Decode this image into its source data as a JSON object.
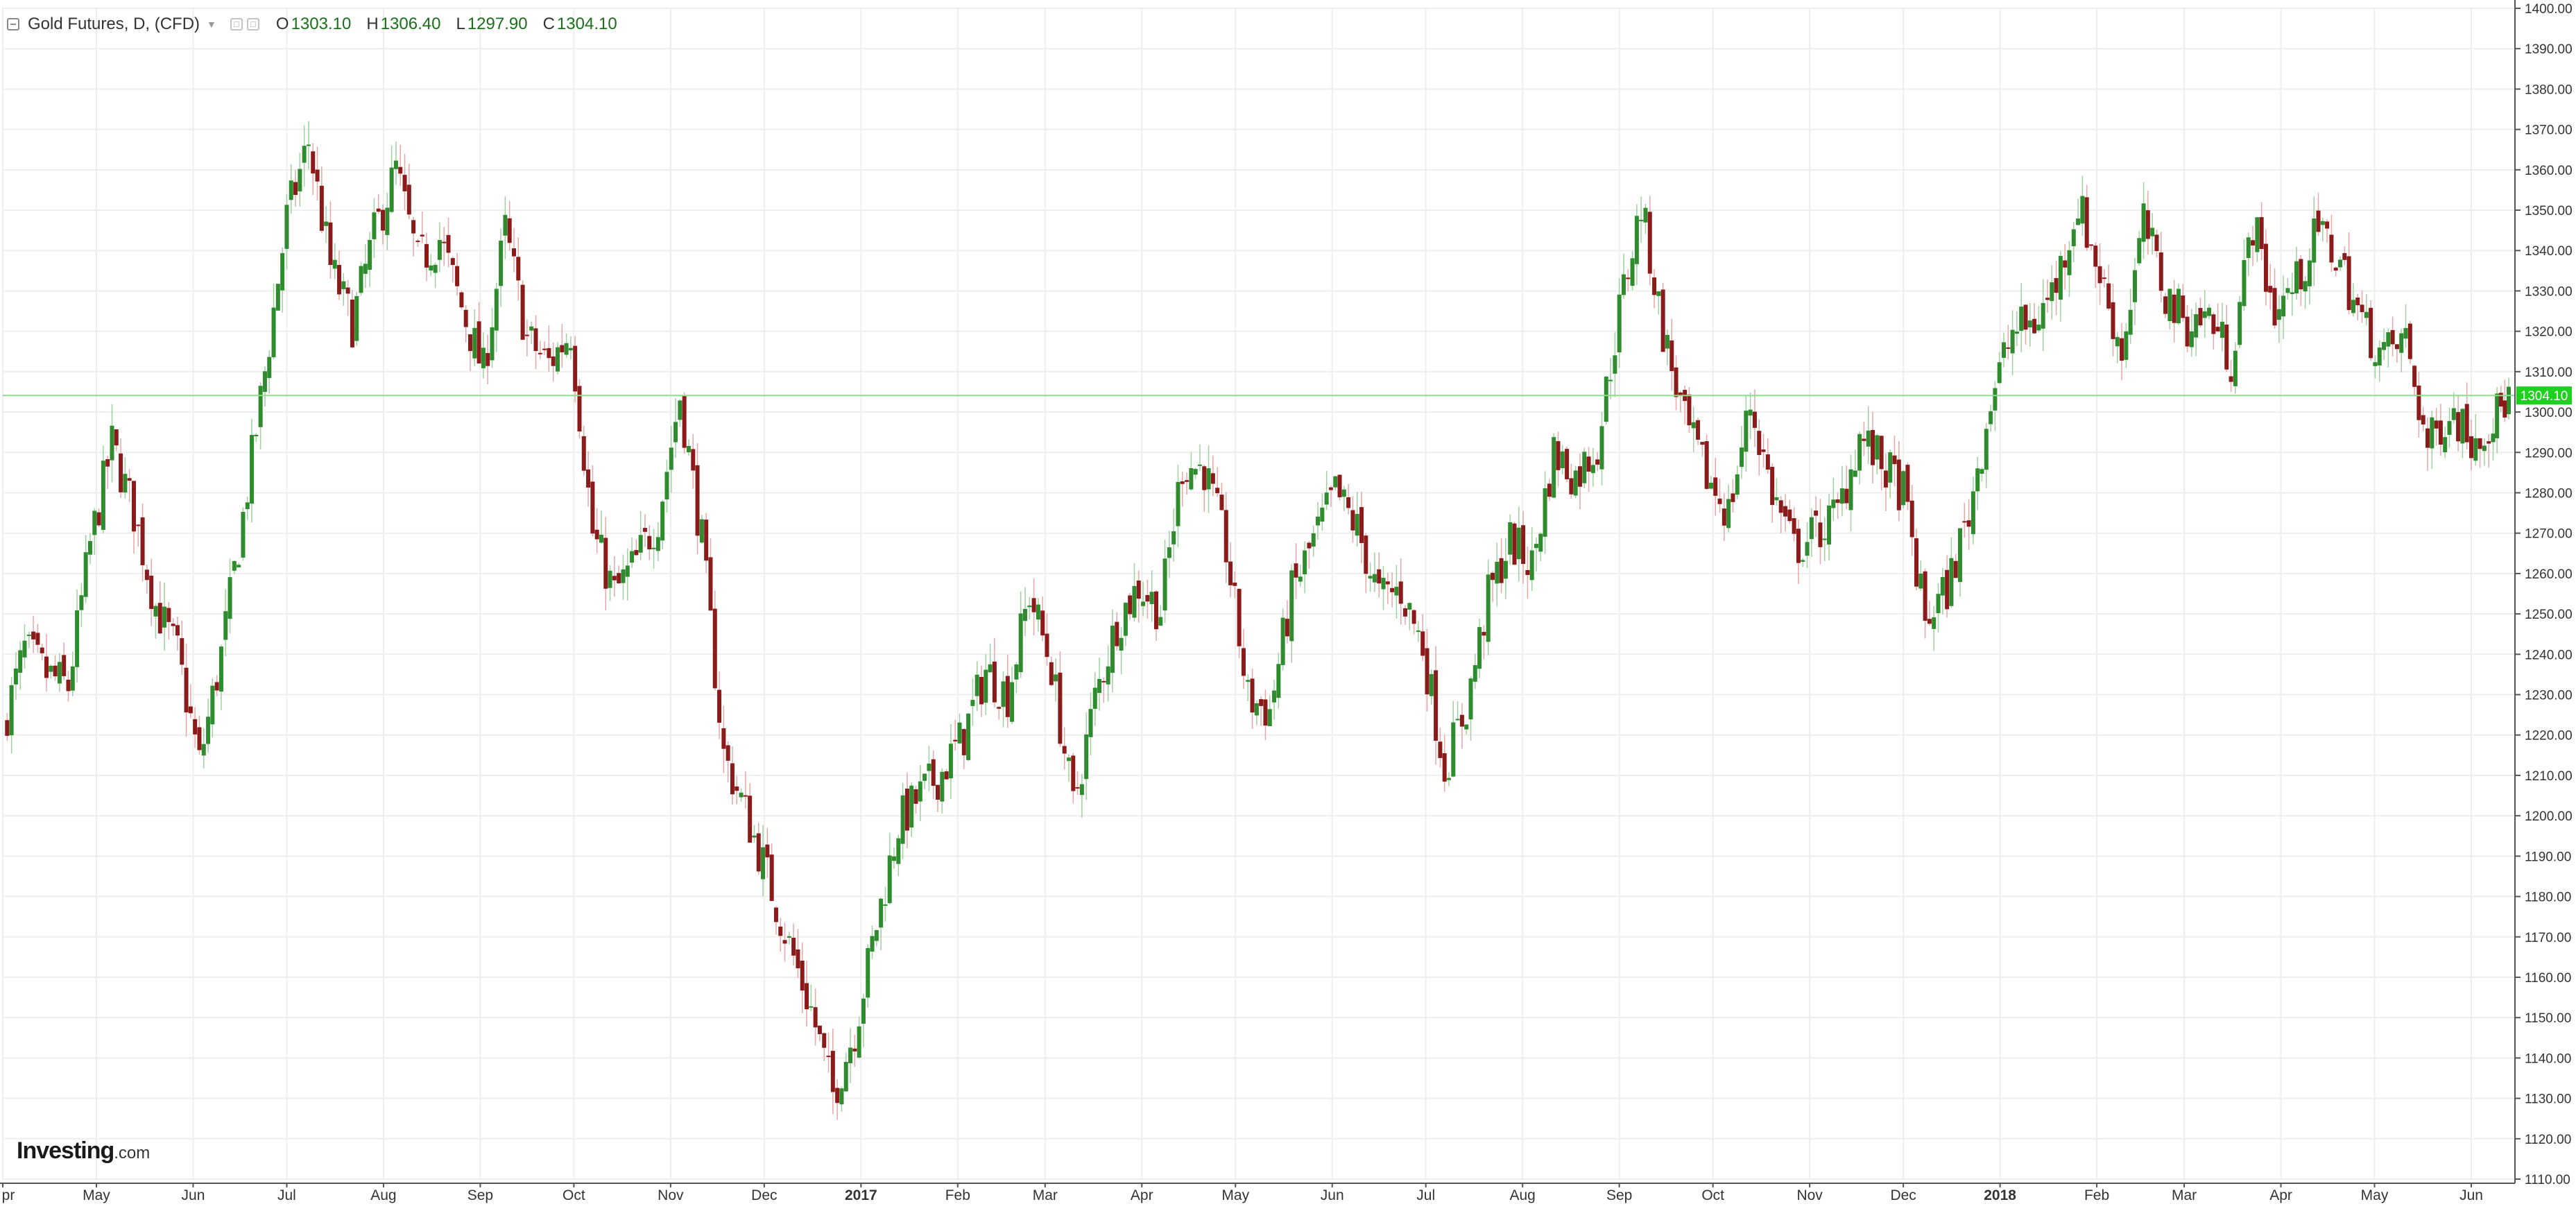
{
  "legend": {
    "title": "Gold Futures, D, (CFD)",
    "open_label": "O",
    "open": "1303.10",
    "high_label": "H",
    "high": "1306.40",
    "low_label": "L",
    "low": "1297.90",
    "close_label": "C",
    "close": "1304.10"
  },
  "logo": {
    "main": "Investing",
    "suffix": ".com"
  },
  "colors": {
    "up": "#2e8b2e",
    "down": "#8b1a1a",
    "wick_up": "#9fd09f",
    "wick_down": "#e8a6a6",
    "grid": "#eeeeee",
    "axis": "#555555",
    "price_line": "#88e088",
    "price_badge": "#1fd11f"
  },
  "chart_data": {
    "type": "candlestick",
    "title": "Gold Futures, D, (CFD)",
    "xlabel": "",
    "ylabel": "",
    "ylim": [
      1110,
      1400
    ],
    "yticks": [
      1110,
      1120,
      1130,
      1140,
      1150,
      1160,
      1170,
      1180,
      1190,
      1200,
      1210,
      1220,
      1230,
      1240,
      1250,
      1260,
      1270,
      1280,
      1290,
      1300,
      1310,
      1320,
      1330,
      1340,
      1350,
      1360,
      1370,
      1380,
      1390,
      1400
    ],
    "ytick_labels": [
      "1110.00",
      "1120.00",
      "1130.00",
      "1140.00",
      "1150.00",
      "1160.00",
      "1170.00",
      "1180.00",
      "1190.00",
      "1200.00",
      "1210.00",
      "1220.00",
      "1230.00",
      "1240.00",
      "1250.00",
      "1260.00",
      "1270.00",
      "1280.00",
      "1290.00",
      "1300.00",
      "1310.00",
      "1320.00",
      "1330.00",
      "1340.00",
      "1350.00",
      "1360.00",
      "1370.00",
      "1380.00",
      "1390.00",
      "1400.00"
    ],
    "x_range": [
      "2016-04-01",
      "2018-06-15"
    ],
    "xticks": [
      {
        "date": "2016-04-01",
        "label": "pr",
        "bold": false
      },
      {
        "date": "2016-05-01",
        "label": "May",
        "bold": false
      },
      {
        "date": "2016-06-01",
        "label": "Jun",
        "bold": false
      },
      {
        "date": "2016-07-01",
        "label": "Jul",
        "bold": false
      },
      {
        "date": "2016-08-01",
        "label": "Aug",
        "bold": false
      },
      {
        "date": "2016-09-01",
        "label": "Sep",
        "bold": false
      },
      {
        "date": "2016-10-01",
        "label": "Oct",
        "bold": false
      },
      {
        "date": "2016-11-01",
        "label": "Nov",
        "bold": false
      },
      {
        "date": "2016-12-01",
        "label": "Dec",
        "bold": false
      },
      {
        "date": "2017-01-01",
        "label": "2017",
        "bold": true
      },
      {
        "date": "2017-02-01",
        "label": "Feb",
        "bold": false
      },
      {
        "date": "2017-03-01",
        "label": "Mar",
        "bold": false
      },
      {
        "date": "2017-04-01",
        "label": "Apr",
        "bold": false
      },
      {
        "date": "2017-05-01",
        "label": "May",
        "bold": false
      },
      {
        "date": "2017-06-01",
        "label": "Jun",
        "bold": false
      },
      {
        "date": "2017-07-01",
        "label": "Jul",
        "bold": false
      },
      {
        "date": "2017-08-01",
        "label": "Aug",
        "bold": false
      },
      {
        "date": "2017-09-01",
        "label": "Sep",
        "bold": false
      },
      {
        "date": "2017-10-01",
        "label": "Oct",
        "bold": false
      },
      {
        "date": "2017-11-01",
        "label": "Nov",
        "bold": false
      },
      {
        "date": "2017-12-01",
        "label": "Dec",
        "bold": false
      },
      {
        "date": "2018-01-01",
        "label": "2018",
        "bold": true
      },
      {
        "date": "2018-02-01",
        "label": "Feb",
        "bold": false
      },
      {
        "date": "2018-03-01",
        "label": "Mar",
        "bold": false
      },
      {
        "date": "2018-04-01",
        "label": "Apr",
        "bold": false
      },
      {
        "date": "2018-05-01",
        "label": "May",
        "bold": false
      },
      {
        "date": "2018-06-01",
        "label": "Jun",
        "bold": false
      }
    ],
    "grid": true,
    "last_price": 1304.1,
    "last_price_label": "1304.10",
    "weekly_closes": [
      {
        "date": "2016-04-01",
        "close": 1222
      },
      {
        "date": "2016-04-08",
        "close": 1241
      },
      {
        "date": "2016-04-15",
        "close": 1235
      },
      {
        "date": "2016-04-22",
        "close": 1232
      },
      {
        "date": "2016-04-29",
        "close": 1267
      },
      {
        "date": "2016-05-06",
        "close": 1292
      },
      {
        "date": "2016-05-13",
        "close": 1275
      },
      {
        "date": "2016-05-20",
        "close": 1252
      },
      {
        "date": "2016-05-27",
        "close": 1240
      },
      {
        "date": "2016-06-03",
        "close": 1213
      },
      {
        "date": "2016-06-10",
        "close": 1240
      },
      {
        "date": "2016-06-17",
        "close": 1274
      },
      {
        "date": "2016-06-24",
        "close": 1310
      },
      {
        "date": "2016-07-01",
        "close": 1348
      },
      {
        "date": "2016-07-08",
        "close": 1367
      },
      {
        "date": "2016-07-15",
        "close": 1336
      },
      {
        "date": "2016-07-22",
        "close": 1322
      },
      {
        "date": "2016-07-29",
        "close": 1344
      },
      {
        "date": "2016-08-05",
        "close": 1360
      },
      {
        "date": "2016-08-12",
        "close": 1337
      },
      {
        "date": "2016-08-19",
        "close": 1343
      },
      {
        "date": "2016-08-26",
        "close": 1326
      },
      {
        "date": "2016-09-02",
        "close": 1310
      },
      {
        "date": "2016-09-09",
        "close": 1345
      },
      {
        "date": "2016-09-16",
        "close": 1318
      },
      {
        "date": "2016-09-23",
        "close": 1312
      },
      {
        "date": "2016-09-30",
        "close": 1320
      },
      {
        "date": "2016-10-07",
        "close": 1270
      },
      {
        "date": "2016-10-14",
        "close": 1255
      },
      {
        "date": "2016-10-21",
        "close": 1263
      },
      {
        "date": "2016-10-28",
        "close": 1274
      },
      {
        "date": "2016-11-04",
        "close": 1304
      },
      {
        "date": "2016-11-11",
        "close": 1268
      },
      {
        "date": "2016-11-18",
        "close": 1215
      },
      {
        "date": "2016-11-25",
        "close": 1201
      },
      {
        "date": "2016-12-02",
        "close": 1185
      },
      {
        "date": "2016-12-09",
        "close": 1168
      },
      {
        "date": "2016-12-16",
        "close": 1152
      },
      {
        "date": "2016-12-23",
        "close": 1131
      },
      {
        "date": "2016-12-30",
        "close": 1147
      },
      {
        "date": "2017-01-06",
        "close": 1173
      },
      {
        "date": "2017-01-13",
        "close": 1198
      },
      {
        "date": "2017-01-20",
        "close": 1205
      },
      {
        "date": "2017-01-27",
        "close": 1211
      },
      {
        "date": "2017-02-03",
        "close": 1220
      },
      {
        "date": "2017-02-10",
        "close": 1236
      },
      {
        "date": "2017-02-17",
        "close": 1230
      },
      {
        "date": "2017-02-24",
        "close": 1255
      },
      {
        "date": "2017-03-03",
        "close": 1237
      },
      {
        "date": "2017-03-10",
        "close": 1202
      },
      {
        "date": "2017-03-17",
        "close": 1229
      },
      {
        "date": "2017-03-24",
        "close": 1248
      },
      {
        "date": "2017-03-31",
        "close": 1257
      },
      {
        "date": "2017-04-07",
        "close": 1251
      },
      {
        "date": "2017-04-14",
        "close": 1287
      },
      {
        "date": "2017-04-21",
        "close": 1286
      },
      {
        "date": "2017-04-28",
        "close": 1266
      },
      {
        "date": "2017-05-05",
        "close": 1229
      },
      {
        "date": "2017-05-12",
        "close": 1226
      },
      {
        "date": "2017-05-19",
        "close": 1255
      },
      {
        "date": "2017-05-26",
        "close": 1268
      },
      {
        "date": "2017-06-02",
        "close": 1280
      },
      {
        "date": "2017-06-09",
        "close": 1271
      },
      {
        "date": "2017-06-16",
        "close": 1254
      },
      {
        "date": "2017-06-23",
        "close": 1256
      },
      {
        "date": "2017-06-30",
        "close": 1242
      },
      {
        "date": "2017-07-07",
        "close": 1212
      },
      {
        "date": "2017-07-14",
        "close": 1227
      },
      {
        "date": "2017-07-21",
        "close": 1254
      },
      {
        "date": "2017-07-28",
        "close": 1268
      },
      {
        "date": "2017-08-04",
        "close": 1262
      },
      {
        "date": "2017-08-11",
        "close": 1290
      },
      {
        "date": "2017-08-18",
        "close": 1284
      },
      {
        "date": "2017-08-25",
        "close": 1292
      },
      {
        "date": "2017-09-01",
        "close": 1325
      },
      {
        "date": "2017-09-08",
        "close": 1351
      },
      {
        "date": "2017-09-15",
        "close": 1320
      },
      {
        "date": "2017-09-22",
        "close": 1297
      },
      {
        "date": "2017-09-29",
        "close": 1284
      },
      {
        "date": "2017-10-06",
        "close": 1275
      },
      {
        "date": "2017-10-13",
        "close": 1302
      },
      {
        "date": "2017-10-20",
        "close": 1280
      },
      {
        "date": "2017-10-27",
        "close": 1266
      },
      {
        "date": "2017-11-03",
        "close": 1270
      },
      {
        "date": "2017-11-10",
        "close": 1275
      },
      {
        "date": "2017-11-17",
        "close": 1294
      },
      {
        "date": "2017-11-24",
        "close": 1287
      },
      {
        "date": "2017-12-01",
        "close": 1280
      },
      {
        "date": "2017-12-08",
        "close": 1248
      },
      {
        "date": "2017-12-15",
        "close": 1256
      },
      {
        "date": "2017-12-22",
        "close": 1275
      },
      {
        "date": "2017-12-29",
        "close": 1303
      },
      {
        "date": "2018-01-05",
        "close": 1320
      },
      {
        "date": "2018-01-12",
        "close": 1322
      },
      {
        "date": "2018-01-19",
        "close": 1332
      },
      {
        "date": "2018-01-26",
        "close": 1352
      },
      {
        "date": "2018-02-02",
        "close": 1334
      },
      {
        "date": "2018-02-09",
        "close": 1315
      },
      {
        "date": "2018-02-16",
        "close": 1347
      },
      {
        "date": "2018-02-23",
        "close": 1329
      },
      {
        "date": "2018-03-02",
        "close": 1322
      },
      {
        "date": "2018-03-09",
        "close": 1324
      },
      {
        "date": "2018-03-16",
        "close": 1313
      },
      {
        "date": "2018-03-23",
        "close": 1347
      },
      {
        "date": "2018-03-30",
        "close": 1325
      },
      {
        "date": "2018-04-06",
        "close": 1332
      },
      {
        "date": "2018-04-13",
        "close": 1345
      },
      {
        "date": "2018-04-20",
        "close": 1337
      },
      {
        "date": "2018-04-27",
        "close": 1322
      },
      {
        "date": "2018-05-04",
        "close": 1314
      },
      {
        "date": "2018-05-11",
        "close": 1318
      },
      {
        "date": "2018-05-18",
        "close": 1291
      },
      {
        "date": "2018-05-25",
        "close": 1301
      },
      {
        "date": "2018-06-01",
        "close": 1294
      },
      {
        "date": "2018-06-08",
        "close": 1298
      },
      {
        "date": "2018-06-13",
        "close": 1304.1
      }
    ]
  }
}
